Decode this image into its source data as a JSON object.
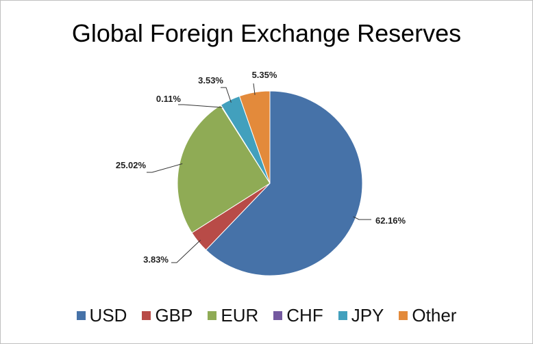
{
  "chart_data": {
    "type": "pie",
    "title": "Global Foreign Exchange Reserves",
    "categories": [
      "USD",
      "GBP",
      "EUR",
      "CHF",
      "JPY",
      "Other"
    ],
    "values": [
      62.16,
      3.83,
      25.02,
      0.11,
      3.53,
      5.35
    ],
    "labels": [
      "62.16%",
      "3.83%",
      "25.02%",
      "0.11%",
      "3.53%",
      "5.35%"
    ],
    "colors": [
      "#4672a8",
      "#b84b47",
      "#8fab55",
      "#7459a0",
      "#42a0bd",
      "#e38a3b"
    ],
    "legend_position": "bottom"
  }
}
